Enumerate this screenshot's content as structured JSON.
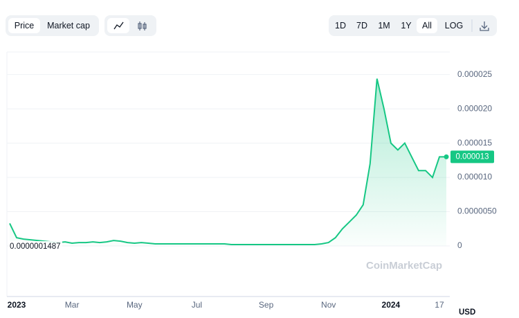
{
  "toolbar": {
    "views": [
      "Price",
      "Market cap"
    ],
    "ranges": [
      "1D",
      "7D",
      "1M",
      "1Y",
      "All",
      "LOG"
    ]
  },
  "chart_data": {
    "type": "area",
    "categories": [
      null,
      "2023",
      null,
      null,
      null,
      null,
      null,
      null,
      null,
      "Mar",
      null,
      null,
      null,
      null,
      null,
      null,
      null,
      null,
      "May",
      null,
      null,
      null,
      null,
      null,
      null,
      null,
      null,
      "Jul",
      null,
      null,
      null,
      null,
      null,
      null,
      null,
      null,
      null,
      "Sep",
      null,
      null,
      null,
      null,
      null,
      null,
      null,
      null,
      "Nov",
      null,
      null,
      null,
      null,
      null,
      null,
      null,
      null,
      "2024",
      null,
      null,
      null,
      null,
      null,
      null,
      "17",
      null
    ],
    "values": [
      3.3e-06,
      1.2e-06,
      1e-06,
      9e-07,
      8e-07,
      7e-07,
      6e-07,
      5e-07,
      6e-07,
      4e-07,
      5e-07,
      5e-07,
      6e-07,
      5e-07,
      6e-07,
      8e-07,
      7e-07,
      5e-07,
      4e-07,
      5e-07,
      4e-07,
      3e-07,
      3e-07,
      3e-07,
      3e-07,
      3e-07,
      3e-07,
      3e-07,
      3e-07,
      3e-07,
      3e-07,
      3e-07,
      2e-07,
      2e-07,
      2e-07,
      2e-07,
      2e-07,
      2e-07,
      2e-07,
      2e-07,
      2e-07,
      2e-07,
      2e-07,
      2e-07,
      2e-07,
      3e-07,
      5e-07,
      1.2e-06,
      2.5e-06,
      3.5e-06,
      4.5e-06,
      6e-06,
      1.2e-05,
      2.44e-05,
      2e-05,
      1.5e-05,
      1.4e-05,
      1.5e-05,
      1.3e-05,
      1.1e-05,
      1.1e-05,
      1e-05,
      1.3e-05,
      1.3e-05
    ],
    "color": "#16c784",
    "ylim": [
      0,
      2.8e-05
    ],
    "yticks": [
      0,
      {
        "value": 5e-06,
        "label": "0.0000050"
      },
      {
        "value": 1e-05,
        "label": "0.000010"
      },
      1.5e-05,
      {
        "value": 2e-05,
        "label": "0.000020"
      },
      2.5e-05
    ],
    "grid": true,
    "last_price_label": "0.000013",
    "start_label": "0.0000001487",
    "watermark": "CoinMarketCap",
    "currency": "USD"
  }
}
